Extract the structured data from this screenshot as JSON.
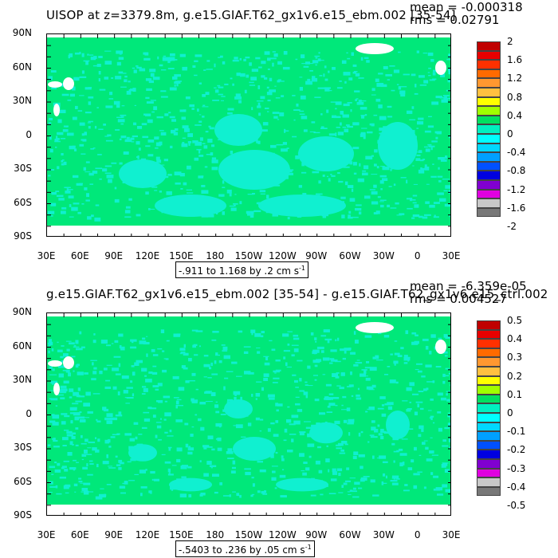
{
  "panels": [
    {
      "title": "UISOP at z=3379.8m, g.e15.GIAF.T62_gx1v6.e15_ebm.002 [35-54]",
      "mean_text": "mean = -0.000318",
      "rms_text": "rms = 0.02791",
      "range_text": "-.911 to 1.168 by .2 cm s",
      "range_unit_exp": "-1",
      "colorbar_labels": [
        "2",
        "1.6",
        "1.2",
        "0.8",
        "0.4",
        "0",
        "-0.4",
        "-0.8",
        "-1.2",
        "-1.6",
        "-2"
      ],
      "colors": [
        "#c00000",
        "#e80000",
        "#ff3000",
        "#ff6a00",
        "#ff9830",
        "#ffc040",
        "#ffff00",
        "#a0ff00",
        "#00e060",
        "#00f0c0",
        "#00ffff",
        "#00d8ff",
        "#00a0ff",
        "#0050ff",
        "#0000e0",
        "#8000d0",
        "#e000e0",
        "#c8c8c8",
        "#787878"
      ],
      "map_color": "#00e87a",
      "noise_color": "#10f0d0"
    },
    {
      "title": "g.e15.GIAF.T62_gx1v6.e15_ebm.002 [35-54] - g.e15.GIAF.T62_gx1v6.e15_ctrl.002",
      "mean_text": "mean = -6.359e-05",
      "rms_text": "rms = 0.004527",
      "range_text": "-.5403 to .236 by .05 cm s",
      "range_unit_exp": "-1",
      "colorbar_labels": [
        "0.5",
        "0.4",
        "0.3",
        "0.2",
        "0.1",
        "0",
        "-0.1",
        "-0.2",
        "-0.3",
        "-0.4",
        "-0.5"
      ],
      "colors": [
        "#c00000",
        "#e80000",
        "#ff3000",
        "#ff6a00",
        "#ff9830",
        "#ffc040",
        "#ffff00",
        "#a0ff00",
        "#00e060",
        "#00f0c0",
        "#00ffff",
        "#00d8ff",
        "#00a0ff",
        "#0050ff",
        "#0000e0",
        "#8000d0",
        "#e000e0",
        "#c8c8c8",
        "#787878"
      ],
      "map_color": "#00e87a",
      "noise_color": "#10f0d0"
    }
  ],
  "lat_labels": [
    "90N",
    "60N",
    "30N",
    "0",
    "30S",
    "60S",
    "90S"
  ],
  "lon_labels": [
    "30E",
    "60E",
    "90E",
    "120E",
    "150E",
    "180",
    "150W",
    "120W",
    "90W",
    "60W",
    "30W",
    "0",
    "30E"
  ]
}
